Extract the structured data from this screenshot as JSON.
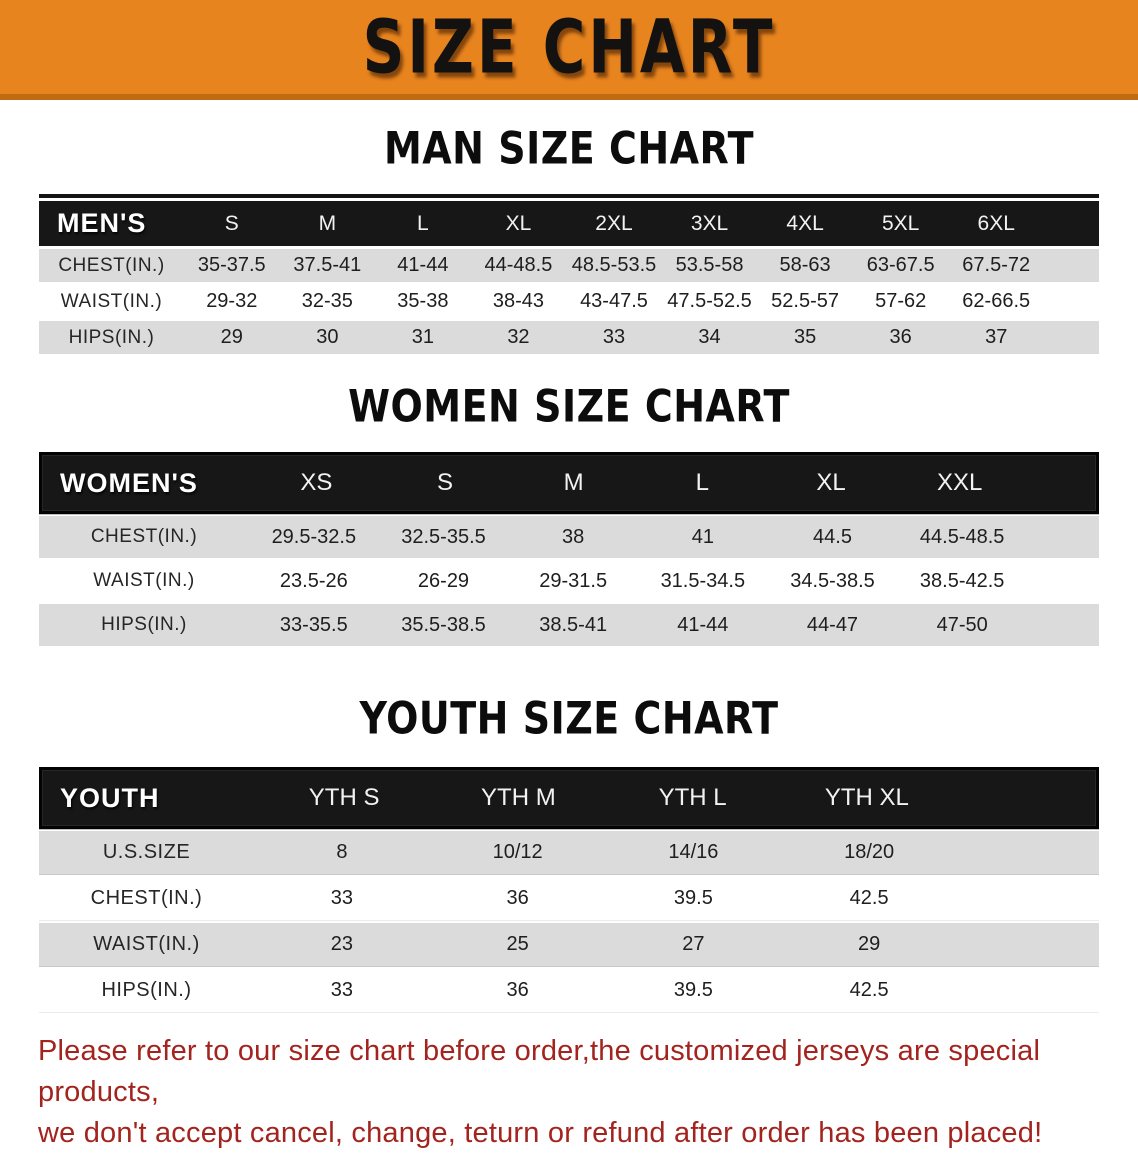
{
  "banner": {
    "title": "SIZE CHART"
  },
  "colors": {
    "banner_bg": "#E8841E",
    "banner_accent": "#C06A12",
    "header_bg": "#171717",
    "stripe": "#DBDBDB",
    "disclaimer": "#A3241E"
  },
  "sections": [
    {
      "id": "men",
      "heading": "MAN SIZE CHART",
      "table": {
        "header_label": "MEN'S",
        "columns": [
          "S",
          "M",
          "L",
          "XL",
          "2XL",
          "3XL",
          "4XL",
          "5XL",
          "6XL"
        ],
        "rows": [
          {
            "label": "CHEST(IN.)",
            "values": [
              "35-37.5",
              "37.5-41",
              "41-44",
              "44-48.5",
              "48.5-53.5",
              "53.5-58",
              "58-63",
              "63-67.5",
              "67.5-72"
            ]
          },
          {
            "label": "WAIST(IN.)",
            "values": [
              "29-32",
              "32-35",
              "35-38",
              "38-43",
              "43-47.5",
              "47.5-52.5",
              "52.5-57",
              "57-62",
              "62-66.5"
            ]
          },
          {
            "label": "HIPS(IN.)",
            "values": [
              "29",
              "30",
              "31",
              "32",
              "33",
              "34",
              "35",
              "36",
              "37"
            ]
          }
        ]
      }
    },
    {
      "id": "women",
      "heading": "WOMEN SIZE CHART",
      "table": {
        "header_label": "WOMEN'S",
        "columns": [
          "XS",
          "S",
          "M",
          "L",
          "XL",
          "XXL"
        ],
        "rows": [
          {
            "label": "CHEST(IN.)",
            "values": [
              "29.5-32.5",
              "32.5-35.5",
              "38",
              "41",
              "44.5",
              "44.5-48.5"
            ]
          },
          {
            "label": "WAIST(IN.)",
            "values": [
              "23.5-26",
              "26-29",
              "29-31.5",
              "31.5-34.5",
              "34.5-38.5",
              "38.5-42.5"
            ]
          },
          {
            "label": "HIPS(IN.)",
            "values": [
              "33-35.5",
              "35.5-38.5",
              "38.5-41",
              "41-44",
              "44-47",
              "47-50"
            ]
          }
        ]
      }
    },
    {
      "id": "youth",
      "heading": "YOUTH SIZE CHART",
      "table": {
        "header_label": "YOUTH",
        "columns": [
          "YTH S",
          "YTH M",
          "YTH L",
          "YTH XL"
        ],
        "rows": [
          {
            "label": "U.S.SIZE",
            "values": [
              "8",
              "10/12",
              "14/16",
              "18/20"
            ]
          },
          {
            "label": "CHEST(IN.)",
            "values": [
              "33",
              "36",
              "39.5",
              "42.5"
            ]
          },
          {
            "label": "WAIST(IN.)",
            "values": [
              "23",
              "25",
              "27",
              "29"
            ]
          },
          {
            "label": "HIPS(IN.)",
            "values": [
              "33",
              "36",
              "39.5",
              "42.5"
            ]
          }
        ]
      }
    }
  ],
  "disclaimer": {
    "line1": "Please refer to our size chart before order,the customized jerseys are special products,",
    "line2": "we don't accept cancel, change, teturn or refund after order has been placed!"
  }
}
